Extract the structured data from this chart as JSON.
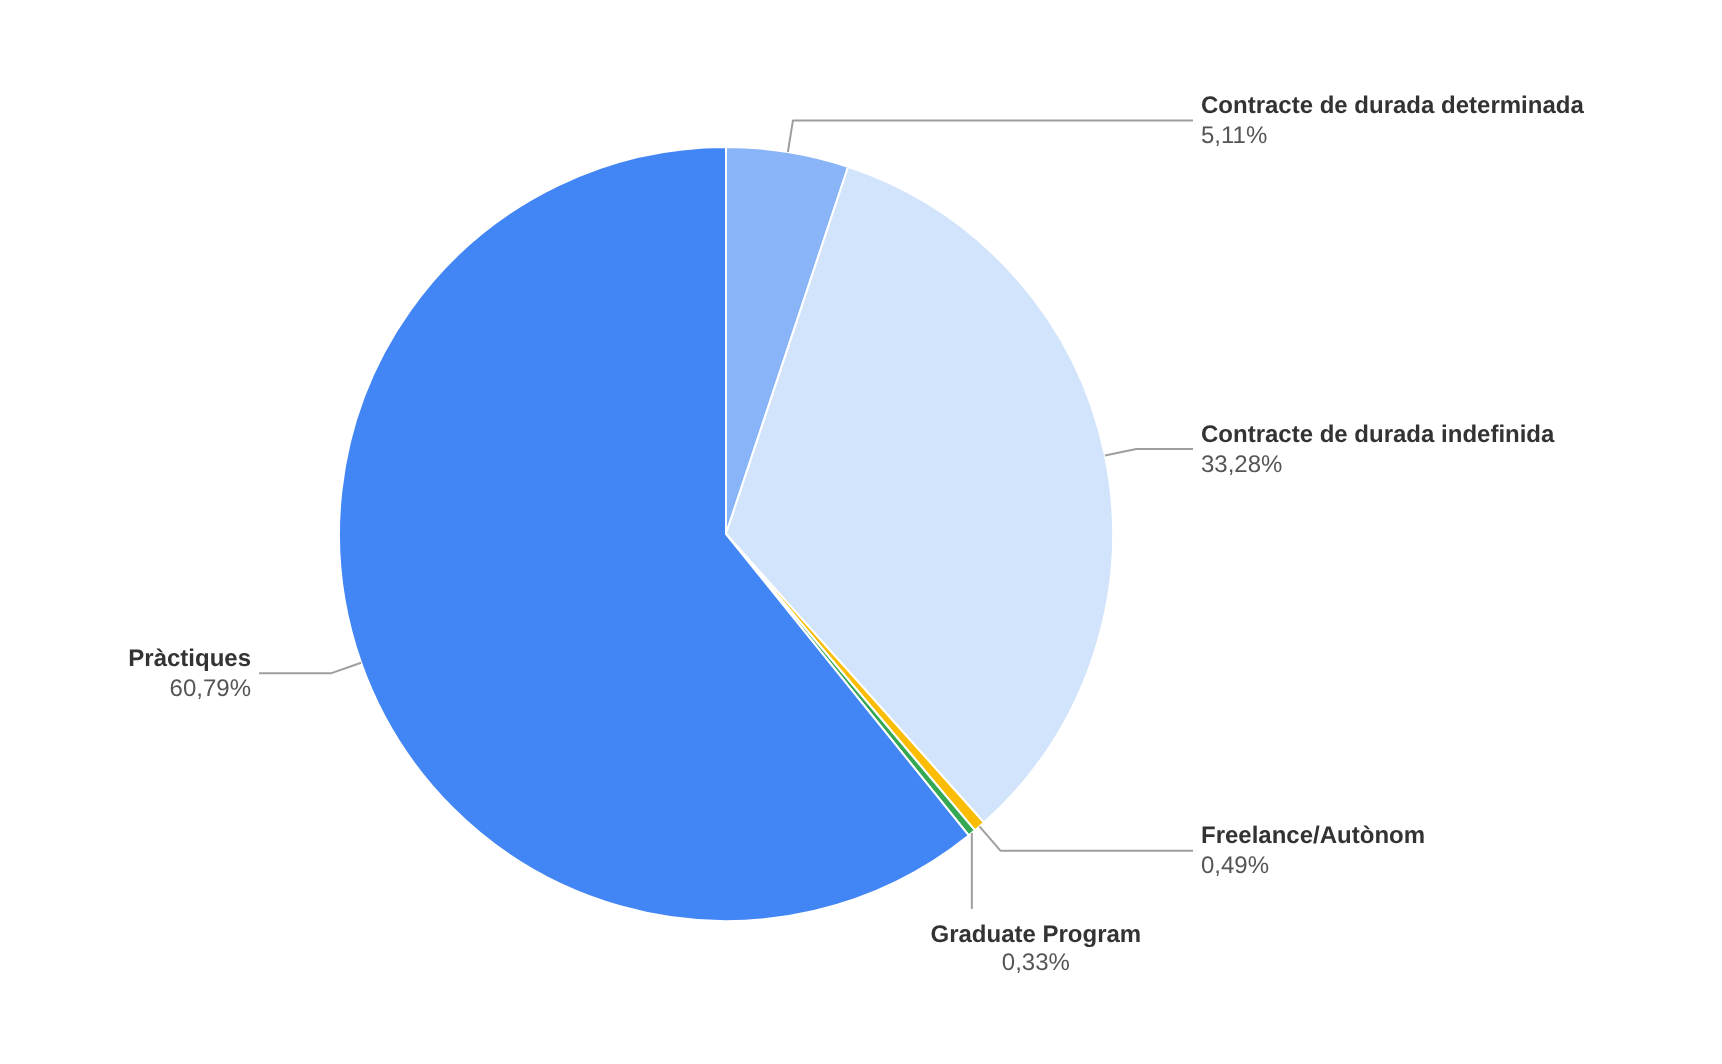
{
  "chart_data": {
    "type": "pie",
    "categories": [
      "Contracte de durada determinada",
      "Contracte de durada indefinida",
      "Freelance/Autònom",
      "Graduate Program",
      "Pràctiques"
    ],
    "values": [
      5.11,
      33.28,
      0.49,
      0.33,
      60.79
    ],
    "colors": [
      "#8ab4f8",
      "#d2e3fc",
      "#fbbc04",
      "#34a853",
      "#4285f4"
    ],
    "value_labels": [
      "5,11%",
      "33,28%",
      "0,49%",
      "0,33%",
      "60,79%"
    ]
  }
}
